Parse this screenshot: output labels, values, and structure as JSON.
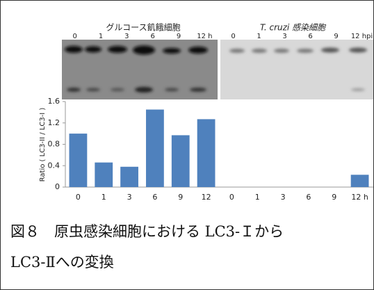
{
  "blots": [
    {
      "title": "グルコース飢餓細胞",
      "lanes": [
        "0",
        "1",
        "3",
        "6",
        "9",
        "12 h"
      ]
    },
    {
      "title": "T. cruzi 感染細胞",
      "lanes": [
        "0",
        "1",
        "3",
        "6",
        "9",
        "12 hpi"
      ]
    }
  ],
  "chart_data": {
    "type": "bar",
    "y_label": "Ratio ( LC3-II / LC3-I )",
    "categories": [
      "0",
      "1",
      "3",
      "6",
      "9",
      "12",
      "0",
      "1",
      "3",
      "6",
      "9",
      "12 h"
    ],
    "values": [
      1.0,
      0.46,
      0.38,
      1.45,
      0.97,
      1.27,
      0,
      0,
      0,
      0,
      0,
      0.23
    ],
    "color": "#4f81bd",
    "ylim": [
      0,
      1.6
    ],
    "yticks": [
      0,
      0.4,
      0.8,
      1.2,
      1.6
    ]
  },
  "caption": [
    "図８　原虫感染細胞における LC3-Ｉから",
    "LC3-Ⅱへの変換"
  ]
}
